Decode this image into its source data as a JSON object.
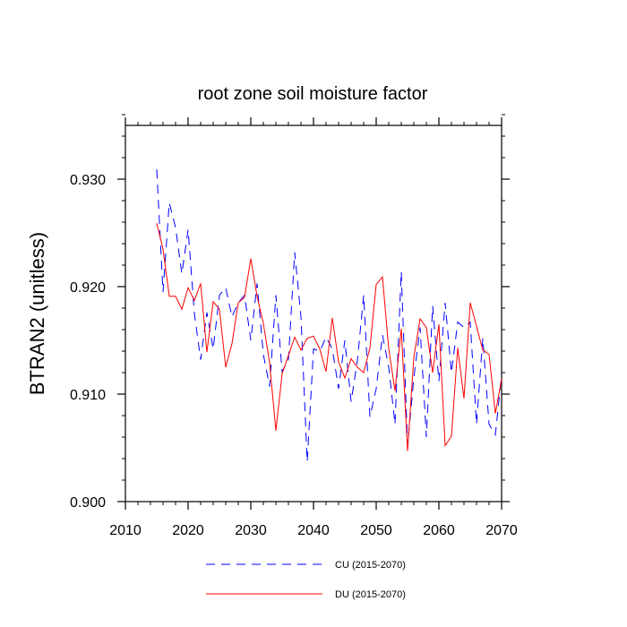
{
  "chart_data": {
    "type": "line",
    "title": "root zone soil moisture factor",
    "xlabel": "",
    "ylabel": "BTRAN2  (unitless)",
    "xlim": [
      2010,
      2070
    ],
    "ylim": [
      0.9,
      0.935
    ],
    "x_ticks": [
      2010,
      2020,
      2030,
      2040,
      2050,
      2060,
      2070
    ],
    "x_tick_labels": [
      "2010",
      "2020",
      "2030",
      "2040",
      "2050",
      "2060",
      "2070"
    ],
    "y_ticks": [
      0.9,
      0.91,
      0.92,
      0.93
    ],
    "y_tick_labels": [
      "0.900",
      "0.910",
      "0.920",
      "0.930"
    ],
    "x_minor_step": 2,
    "y_minor_step": 0.002,
    "grid": false,
    "legend_position": "bottom",
    "x": [
      2015,
      2016,
      2017,
      2018,
      2019,
      2020,
      2021,
      2022,
      2023,
      2024,
      2025,
      2026,
      2027,
      2028,
      2029,
      2030,
      2031,
      2032,
      2033,
      2034,
      2035,
      2036,
      2037,
      2038,
      2039,
      2040,
      2041,
      2042,
      2043,
      2044,
      2045,
      2046,
      2047,
      2048,
      2049,
      2050,
      2051,
      2052,
      2053,
      2054,
      2055,
      2056,
      2057,
      2058,
      2059,
      2060,
      2061,
      2062,
      2063,
      2064,
      2065,
      2066,
      2067,
      2068,
      2069,
      2070
    ],
    "series": [
      {
        "name": "CU (2015-2070)",
        "color": "#0000ff",
        "dash": "dashed",
        "values": [
          0.9309,
          0.9195,
          0.9278,
          0.9255,
          0.9212,
          0.9253,
          0.9175,
          0.9132,
          0.9176,
          0.9142,
          0.9192,
          0.9199,
          0.9172,
          0.9185,
          0.9192,
          0.915,
          0.9203,
          0.9137,
          0.9107,
          0.9192,
          0.9121,
          0.9132,
          0.9232,
          0.9172,
          0.9037,
          0.9142,
          0.914,
          0.9153,
          0.9142,
          0.9105,
          0.915,
          0.9093,
          0.9131,
          0.9192,
          0.9079,
          0.9105,
          0.9155,
          0.9125,
          0.9072,
          0.9214,
          0.9052,
          0.9115,
          0.9162,
          0.906,
          0.9182,
          0.9112,
          0.9185,
          0.912,
          0.9167,
          0.9162,
          0.9167,
          0.9072,
          0.9152,
          0.9072,
          0.9062,
          0.9118
        ]
      },
      {
        "name": "DU (2015-2070)",
        "color": "#ff0000",
        "dash": "solid",
        "values": [
          0.9259,
          0.9235,
          0.9191,
          0.9191,
          0.9179,
          0.9199,
          0.9187,
          0.9203,
          0.9139,
          0.9186,
          0.9179,
          0.9125,
          0.9147,
          0.9185,
          0.919,
          0.9226,
          0.9191,
          0.9166,
          0.9129,
          0.9066,
          0.9119,
          0.9136,
          0.9153,
          0.9141,
          0.9152,
          0.9154,
          0.9142,
          0.9121,
          0.9171,
          0.913,
          0.9115,
          0.9133,
          0.9125,
          0.912,
          0.9143,
          0.9202,
          0.9209,
          0.9142,
          0.9103,
          0.9161,
          0.9047,
          0.9134,
          0.917,
          0.9162,
          0.912,
          0.9165,
          0.9052,
          0.9061,
          0.9143,
          0.9096,
          0.9185,
          0.9163,
          0.9141,
          0.9137,
          0.9082,
          0.9114
        ]
      }
    ]
  }
}
